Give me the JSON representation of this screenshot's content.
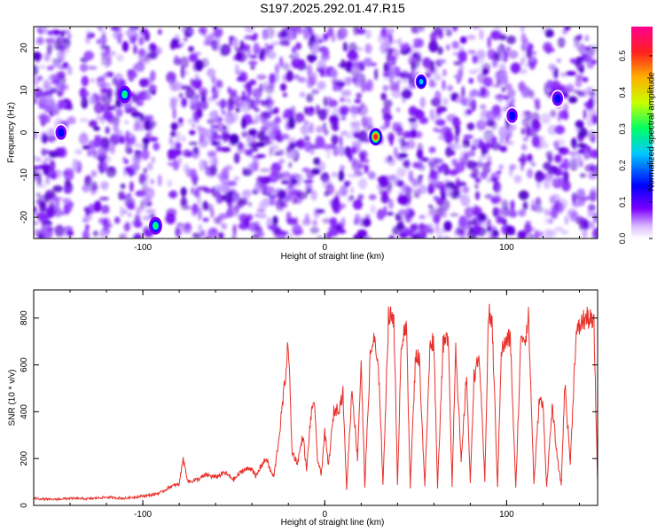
{
  "title": "S197.2025.292.01.47.R15",
  "colors": {
    "snr_line": "#e8302a",
    "axis": "#000000"
  },
  "chart_data": [
    {
      "type": "heatmap",
      "xlabel": "Height of straight line (km)",
      "ylabel": "Frequency (Hz)",
      "xlim": [
        -160,
        150
      ],
      "ylim": [
        -25,
        25
      ],
      "x_ticks": [
        -100,
        0,
        100
      ],
      "y_ticks": [
        -20,
        -10,
        0,
        10,
        20
      ],
      "colorbar": {
        "label": "Normalized spectral amplitude",
        "lim": [
          0,
          0.58
        ],
        "ticks": [
          "0.0",
          "0.1",
          "0.2",
          "0.3",
          "0.4",
          "0.5"
        ],
        "colormap": [
          "#ffffff",
          "#7a00ff",
          "#0000ff",
          "#00c8ff",
          "#00ff64",
          "#c8ff00",
          "#ffb000",
          "#ff2020",
          "#ff0090"
        ]
      },
      "hotspots": [
        {
          "x": 28,
          "y": -1,
          "value": 0.52
        },
        {
          "x": -110,
          "y": 9,
          "value": 0.3
        },
        {
          "x": -93,
          "y": -22,
          "value": 0.3
        },
        {
          "x": 53,
          "y": 12,
          "value": 0.2
        },
        {
          "x": 103,
          "y": 4,
          "value": 0.18
        },
        {
          "x": 128,
          "y": 8,
          "value": 0.18
        },
        {
          "x": -145,
          "y": 0,
          "value": 0.15
        }
      ]
    },
    {
      "type": "line",
      "xlabel": "Height of straight line (km)",
      "ylabel": "SNR (10 * v/v)",
      "xlim": [
        -160,
        150
      ],
      "ylim": [
        0,
        920
      ],
      "x_ticks": [
        -100,
        0,
        100
      ],
      "y_ticks": [
        0,
        200,
        400,
        600,
        800
      ],
      "series": [
        {
          "x": [
            -160,
            -150,
            -140,
            -130,
            -120,
            -110,
            -100,
            -95,
            -90,
            -85,
            -80,
            -78,
            -75,
            -70,
            -65,
            -60,
            -55,
            -50,
            -45,
            -40,
            -38,
            -35,
            -32,
            -30,
            -28,
            -25,
            -22,
            -20,
            -18,
            -15,
            -12,
            -10,
            -8,
            -6,
            -4,
            -2,
            0,
            2,
            5,
            8,
            10,
            12,
            15,
            18,
            20,
            22,
            25,
            27,
            30,
            32,
            35,
            38,
            40,
            42,
            45,
            47,
            50,
            52,
            55,
            58,
            60,
            62,
            65,
            68,
            70,
            72,
            75,
            78,
            80,
            82,
            85,
            88,
            90,
            92,
            95,
            97,
            100,
            102,
            105,
            108,
            110,
            112,
            115,
            118,
            120,
            122,
            125,
            128,
            130,
            132,
            135,
            138,
            140,
            142,
            145,
            148,
            150
          ],
          "y": [
            30,
            25,
            30,
            28,
            35,
            30,
            40,
            45,
            55,
            80,
            90,
            200,
            100,
            110,
            130,
            120,
            140,
            110,
            150,
            160,
            120,
            170,
            200,
            150,
            120,
            300,
            520,
            700,
            230,
            180,
            300,
            150,
            350,
            460,
            200,
            130,
            310,
            170,
            400,
            420,
            480,
            70,
            500,
            200,
            620,
            80,
            630,
            720,
            530,
            80,
            800,
            810,
            80,
            700,
            750,
            80,
            650,
            620,
            80,
            700,
            700,
            80,
            680,
            720,
            80,
            690,
            180,
            560,
            90,
            550,
            630,
            100,
            820,
            780,
            80,
            660,
            700,
            720,
            70,
            740,
            710,
            800,
            90,
            460,
            420,
            80,
            420,
            190,
            90,
            520,
            180,
            720,
            760,
            790,
            800,
            770,
            100
          ]
        }
      ]
    }
  ]
}
